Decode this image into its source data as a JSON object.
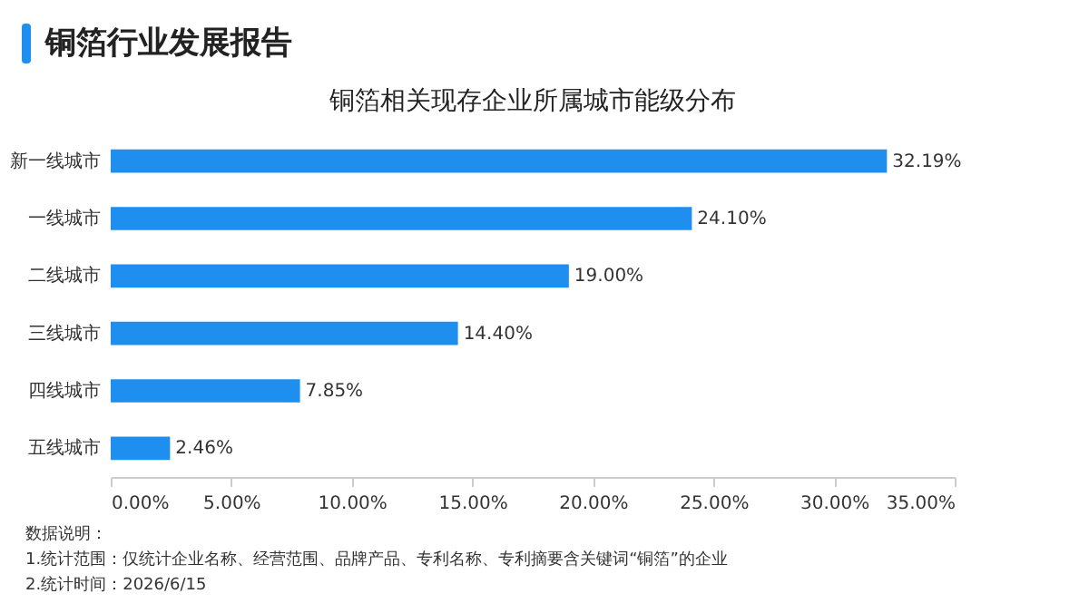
{
  "chart_data": {
    "type": "bar",
    "orientation": "horizontal",
    "title": "铜箔行业发展报告",
    "subtitle": "铜箔相关现存企业所属城市能级分布",
    "categories": [
      "新一线城市",
      "一线城市",
      "二线城市",
      "三线城市",
      "四线城市",
      "五线城市"
    ],
    "values": [
      32.19,
      24.1,
      19.0,
      14.4,
      7.85,
      2.46
    ],
    "value_labels": [
      "32.19%",
      "24.10%",
      "19.00%",
      "14.40%",
      "7.85%",
      "2.46%"
    ],
    "color": "#1e8fef",
    "grid": false,
    "xlim": [
      0,
      35
    ],
    "xticks": [
      {
        "value": 0,
        "label": "0.00%"
      },
      {
        "value": 5,
        "label": "5.00%"
      },
      {
        "value": 10,
        "label": "10.00%"
      },
      {
        "value": 15,
        "label": "15.00%"
      },
      {
        "value": 20,
        "label": "20.00%"
      },
      {
        "value": 25,
        "label": "25.00%"
      },
      {
        "value": 30,
        "label": "30.00%"
      },
      {
        "value": 35,
        "label": "35.00%"
      }
    ],
    "annotations": [
      "数据说明：",
      "1.统计范围：仅统计企业名称、经营范围、品牌产品、专利名称、专利摘要含关键词“铜箔”的企业",
      "2.统计时间：2026/6/15"
    ]
  }
}
